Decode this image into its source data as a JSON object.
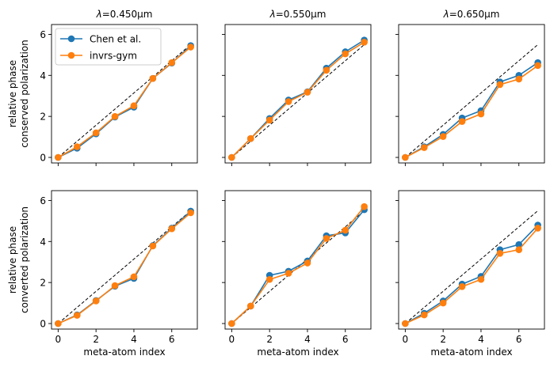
{
  "chart_data": {
    "type": "line",
    "layout": "2 rows x 3 columns grid of subplots",
    "xlabel": "meta-atom index",
    "row_ylabels": [
      [
        "relative phase",
        "conserved polarization"
      ],
      [
        "relative phase",
        "converted polarization"
      ]
    ],
    "column_titles": [
      {
        "prefix": "λ",
        "suffix": "=0.450μm"
      },
      {
        "prefix": "λ",
        "suffix": "=0.550μm"
      },
      {
        "prefix": "λ",
        "suffix": "=0.650μm"
      }
    ],
    "xlim": [
      -0.35,
      7.35
    ],
    "ylim": [
      -0.27,
      6.48
    ],
    "x_ticks": [
      0,
      2,
      4,
      6
    ],
    "y_ticks": [
      0,
      2,
      4,
      6
    ],
    "x": [
      0,
      1,
      2,
      3,
      4,
      5,
      6,
      7
    ],
    "reference_line": {
      "style": "dashed",
      "color": "#000000",
      "x": [
        0,
        7
      ],
      "y": [
        0,
        5.5
      ]
    },
    "legend": {
      "placement": "upper-left",
      "panel": 0,
      "entries": [
        "Chen et al.",
        "invrs-gym"
      ]
    },
    "colors": {
      "Chen et al.": "#1f77b4",
      "invrs-gym": "#ff7f0e"
    },
    "panels": [
      {
        "row": 0,
        "col": 0,
        "series": [
          {
            "name": "Chen et al.",
            "values": [
              0.0,
              0.45,
              1.15,
              1.97,
              2.45,
              3.85,
              4.6,
              5.45
            ]
          },
          {
            "name": "invrs-gym",
            "values": [
              0.0,
              0.52,
              1.2,
              2.0,
              2.52,
              3.85,
              4.62,
              5.38
            ]
          }
        ]
      },
      {
        "row": 0,
        "col": 1,
        "series": [
          {
            "name": "Chen et al.",
            "values": [
              0.0,
              0.92,
              1.9,
              2.8,
              3.2,
              4.35,
              5.15,
              5.72
            ]
          },
          {
            "name": "invrs-gym",
            "values": [
              0.0,
              0.92,
              1.82,
              2.72,
              3.18,
              4.25,
              5.05,
              5.62
            ]
          }
        ]
      },
      {
        "row": 0,
        "col": 2,
        "series": [
          {
            "name": "Chen et al.",
            "values": [
              0.0,
              0.52,
              1.12,
              1.92,
              2.28,
              3.68,
              4.0,
              4.62
            ]
          },
          {
            "name": "invrs-gym",
            "values": [
              0.0,
              0.48,
              1.02,
              1.75,
              2.12,
              3.55,
              3.82,
              4.48
            ]
          }
        ]
      },
      {
        "row": 1,
        "col": 0,
        "series": [
          {
            "name": "Chen et al.",
            "values": [
              0.0,
              0.42,
              1.12,
              1.82,
              2.2,
              3.8,
              4.65,
              5.48
            ]
          },
          {
            "name": "invrs-gym",
            "values": [
              0.0,
              0.4,
              1.1,
              1.85,
              2.28,
              3.78,
              4.62,
              5.4
            ]
          }
        ]
      },
      {
        "row": 1,
        "col": 1,
        "series": [
          {
            "name": "Chen et al.",
            "values": [
              0.0,
              0.85,
              2.35,
              2.55,
              3.05,
              4.28,
              4.42,
              5.55
            ]
          },
          {
            "name": "invrs-gym",
            "values": [
              0.0,
              0.85,
              2.15,
              2.45,
              2.95,
              4.15,
              4.55,
              5.7
            ]
          }
        ]
      },
      {
        "row": 1,
        "col": 2,
        "series": [
          {
            "name": "Chen et al.",
            "values": [
              0.0,
              0.5,
              1.1,
              1.92,
              2.3,
              3.6,
              3.85,
              4.8
            ]
          },
          {
            "name": "invrs-gym",
            "values": [
              0.0,
              0.42,
              1.0,
              1.8,
              2.15,
              3.42,
              3.6,
              4.65
            ]
          }
        ]
      }
    ]
  }
}
